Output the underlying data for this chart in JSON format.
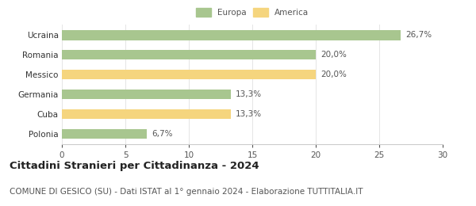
{
  "categories": [
    "Polonia",
    "Cuba",
    "Germania",
    "Messico",
    "Romania",
    "Ucraina"
  ],
  "values": [
    6.7,
    13.3,
    13.3,
    20.0,
    20.0,
    26.7
  ],
  "labels": [
    "6,7%",
    "13,3%",
    "13,3%",
    "20,0%",
    "20,0%",
    "26,7%"
  ],
  "colors": [
    "#a8c68f",
    "#f5d57e",
    "#a8c68f",
    "#f5d57e",
    "#a8c68f",
    "#a8c68f"
  ],
  "legend_labels": [
    "Europa",
    "America"
  ],
  "legend_colors": [
    "#a8c68f",
    "#f5d57e"
  ],
  "xlim": [
    0,
    30
  ],
  "xticks": [
    0,
    5,
    10,
    15,
    20,
    25,
    30
  ],
  "title": "Cittadini Stranieri per Cittadinanza - 2024",
  "subtitle": "COMUNE DI GESICO (SU) - Dati ISTAT al 1° gennaio 2024 - Elaborazione TUTTITALIA.IT",
  "title_fontsize": 9.5,
  "subtitle_fontsize": 7.5,
  "label_fontsize": 7.5,
  "tick_fontsize": 7.5,
  "background_color": "#ffffff",
  "bar_height": 0.5
}
